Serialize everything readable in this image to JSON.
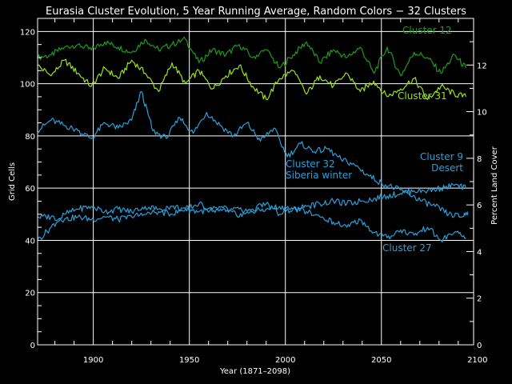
{
  "chart_data": {
    "type": "line",
    "title": "Eurasia Cluster Evolution, 5 Year Running Average, Random Colors − 32 Clusters",
    "xlabel": "Year (1871–2098)",
    "ylabel": "Grid Cells",
    "ylabel_right": "Percent Land Cover",
    "xlim": [
      1871,
      2098
    ],
    "ylim": [
      0,
      125
    ],
    "ylim_right": [
      0,
      14
    ],
    "xticks": [
      1900,
      1950,
      2000,
      2050,
      2100
    ],
    "yticks": [
      0,
      20,
      40,
      60,
      80,
      100,
      120
    ],
    "yticks_right": [
      0,
      2,
      4,
      6,
      8,
      10,
      12
    ],
    "grid": true,
    "colors": {
      "background": "#000000",
      "axes": "#ffffff",
      "cluster12": "#1e9a1e",
      "cluster31": "#9be21e",
      "cluster32": "#2b9fd9",
      "cluster9": "#2b9fd9",
      "cluster27": "#2b9fd9"
    },
    "series": [
      {
        "name": "Cluster 12",
        "label_lines": [
          "Cluster 12"
        ],
        "color": "#1e9a1e",
        "x": [
          1871,
          1878,
          1885,
          1892,
          1899,
          1906,
          1913,
          1920,
          1927,
          1934,
          1941,
          1948,
          1955,
          1962,
          1969,
          1976,
          1983,
          1990,
          1997,
          2004,
          2011,
          2018,
          2025,
          2032,
          2039,
          2046,
          2053,
          2060,
          2067,
          2074,
          2081,
          2088,
          2094
        ],
        "values": [
          110,
          111,
          114,
          115,
          113,
          116,
          114,
          112,
          117,
          113,
          115,
          117,
          108,
          113,
          111,
          115,
          110,
          113,
          106,
          111,
          116,
          108,
          113,
          110,
          114,
          104,
          114,
          103,
          112,
          110,
          104,
          111,
          106
        ]
      },
      {
        "name": "Cluster 31",
        "label_lines": [
          "Cluster 31"
        ],
        "color": "#9be21e",
        "x": [
          1871,
          1878,
          1885,
          1892,
          1899,
          1906,
          1913,
          1920,
          1927,
          1934,
          1941,
          1948,
          1955,
          1962,
          1969,
          1976,
          1983,
          1990,
          1997,
          2004,
          2011,
          2018,
          2025,
          2032,
          2039,
          2046,
          2053,
          2060,
          2067,
          2074,
          2081,
          2088,
          2094
        ],
        "values": [
          107,
          103,
          109,
          104,
          99,
          106,
          102,
          109,
          104,
          97,
          108,
          100,
          105,
          98,
          103,
          107,
          99,
          94,
          102,
          105,
          96,
          103,
          99,
          104,
          97,
          101,
          95,
          98,
          102,
          94,
          99,
          96,
          95
        ]
      },
      {
        "name": "Cluster 32",
        "label_lines": [
          "Cluster 32",
          "Siberia winter"
        ],
        "color": "#2b9fd9",
        "x": [
          1871,
          1878,
          1885,
          1892,
          1899,
          1906,
          1913,
          1920,
          1925,
          1931,
          1938,
          1945,
          1952,
          1959,
          1966,
          1973,
          1980,
          1987,
          1994,
          2001,
          2008,
          2015,
          2022,
          2029,
          2036,
          2043,
          2050,
          2057,
          2064,
          2071,
          2078,
          2085,
          2092,
          2095
        ],
        "values": [
          82,
          86,
          84,
          82,
          79,
          85,
          83,
          86,
          97,
          82,
          79,
          87,
          81,
          89,
          84,
          80,
          85,
          78,
          83,
          72,
          77,
          74,
          75,
          71,
          69,
          65,
          62,
          60,
          58,
          55,
          53,
          50,
          49,
          51
        ]
      },
      {
        "name": "Cluster 9",
        "label_lines": [
          "Cluster 9",
          "Desert"
        ],
        "color": "#2b9fd9",
        "x": [
          1871,
          1878,
          1885,
          1892,
          1899,
          1906,
          1913,
          1920,
          1927,
          1934,
          1941,
          1948,
          1955,
          1962,
          1969,
          1976,
          1983,
          1990,
          1997,
          2004,
          2011,
          2018,
          2025,
          2032,
          2039,
          2046,
          2053,
          2060,
          2067,
          2074,
          2081,
          2088,
          2094
        ],
        "values": [
          49,
          49,
          48,
          49,
          48,
          49,
          48,
          49,
          50,
          51,
          50,
          52,
          51,
          52,
          51,
          52,
          51,
          52,
          53,
          52,
          53,
          54,
          55,
          54,
          55,
          56,
          57,
          58,
          59,
          59,
          60,
          61,
          60
        ]
      },
      {
        "name": "Cluster 27",
        "label_lines": [
          "Cluster 27"
        ],
        "color": "#2b9fd9",
        "x": [
          1871,
          1878,
          1885,
          1892,
          1899,
          1906,
          1913,
          1920,
          1927,
          1934,
          1941,
          1948,
          1955,
          1962,
          1969,
          1976,
          1983,
          1990,
          1997,
          2004,
          2011,
          2018,
          2025,
          2032,
          2039,
          2046,
          2053,
          2060,
          2067,
          2074,
          2081,
          2088,
          2094
        ],
        "values": [
          40,
          45,
          50,
          52,
          53,
          51,
          52,
          51,
          53,
          52,
          53,
          52,
          54,
          51,
          53,
          49,
          52,
          54,
          50,
          52,
          51,
          49,
          47,
          45,
          48,
          43,
          41,
          44,
          42,
          45,
          40,
          43,
          41
        ]
      }
    ]
  }
}
